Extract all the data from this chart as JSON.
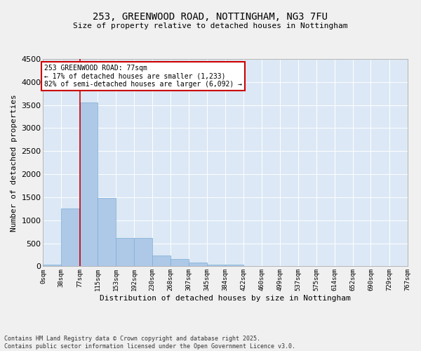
{
  "title_line1": "253, GREENWOOD ROAD, NOTTINGHAM, NG3 7FU",
  "title_line2": "Size of property relative to detached houses in Nottingham",
  "xlabel": "Distribution of detached houses by size in Nottingham",
  "ylabel": "Number of detached properties",
  "bar_color": "#aec8e8",
  "bar_edge_color": "#7aaed4",
  "background_color": "#dce8f5",
  "grid_color": "#ffffff",
  "annotation_box_color": "#cc0000",
  "vline_color": "#cc0000",
  "fig_background": "#f0f0f0",
  "bin_edges": [
    0,
    38,
    77,
    115,
    153,
    192,
    230,
    268,
    307,
    345,
    384,
    422,
    460,
    499,
    537,
    575,
    614,
    652,
    690,
    729,
    767
  ],
  "bar_values": [
    30,
    1260,
    3560,
    1490,
    620,
    620,
    240,
    160,
    90,
    40,
    30,
    5,
    5,
    0,
    0,
    0,
    0,
    0,
    0,
    0
  ],
  "property_size": 77,
  "annotation_text": "253 GREENWOOD ROAD: 77sqm\n← 17% of detached houses are smaller (1,233)\n82% of semi-detached houses are larger (6,092) →",
  "ylim": [
    0,
    4500
  ],
  "yticks": [
    0,
    500,
    1000,
    1500,
    2000,
    2500,
    3000,
    3500,
    4000,
    4500
  ],
  "footer_line1": "Contains HM Land Registry data © Crown copyright and database right 2025.",
  "footer_line2": "Contains public sector information licensed under the Open Government Licence v3.0.",
  "tick_labels": [
    "0sqm",
    "38sqm",
    "77sqm",
    "115sqm",
    "153sqm",
    "192sqm",
    "230sqm",
    "268sqm",
    "307sqm",
    "345sqm",
    "384sqm",
    "422sqm",
    "460sqm",
    "499sqm",
    "537sqm",
    "575sqm",
    "614sqm",
    "652sqm",
    "690sqm",
    "729sqm",
    "767sqm"
  ],
  "title_fontsize": 10,
  "subtitle_fontsize": 8,
  "xlabel_fontsize": 8,
  "ylabel_fontsize": 8,
  "tick_fontsize": 6.5,
  "ytick_fontsize": 8,
  "annot_fontsize": 7,
  "footer_fontsize": 6
}
